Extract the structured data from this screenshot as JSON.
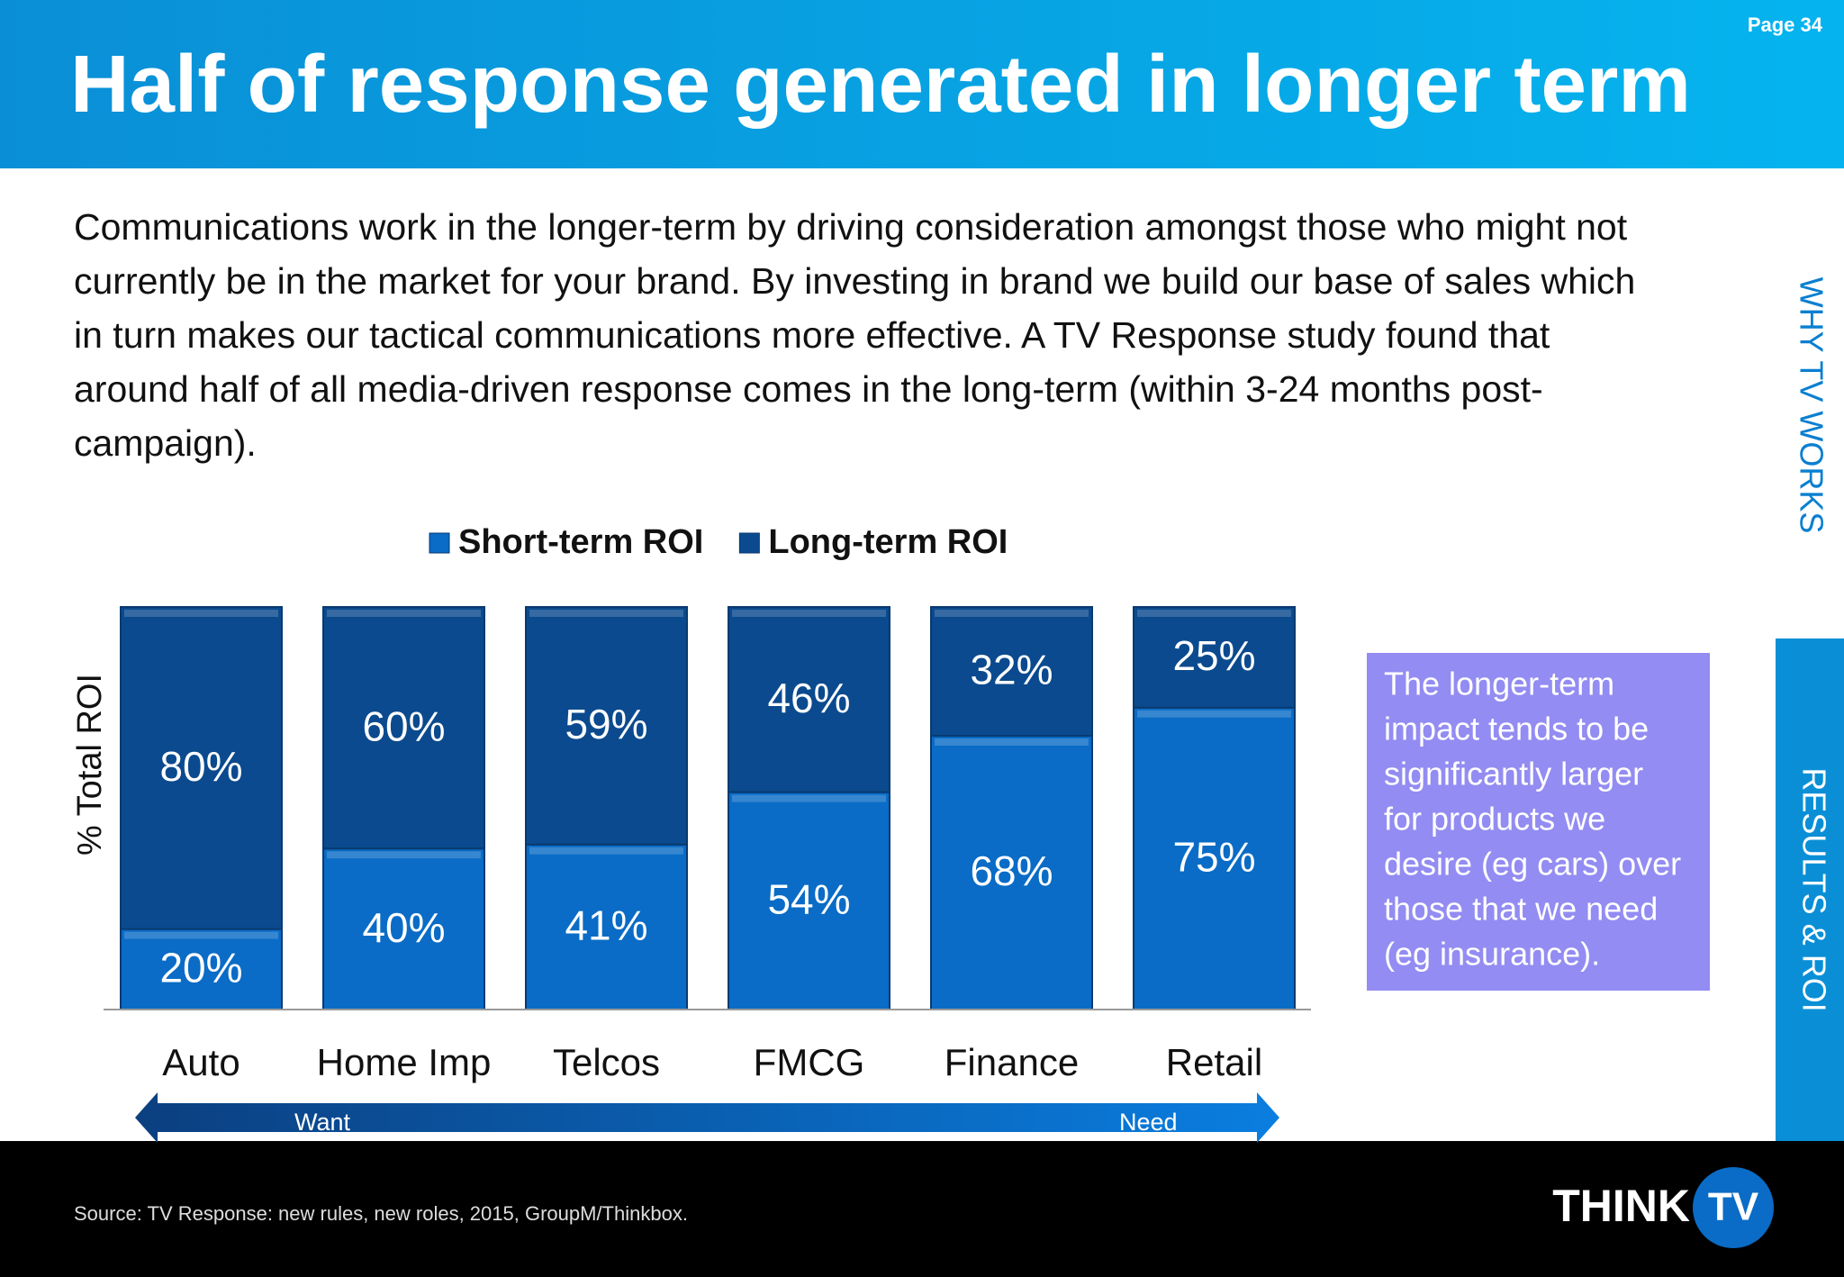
{
  "header": {
    "title": "Half of response generated in longer term",
    "page": "Page 34"
  },
  "paragraph": [
    "Communications work in the longer-term by driving consideration amongst those who might not",
    "currently be in the market for your brand.  By investing in brand we build our base of sales which",
    "in turn makes our tactical communications more effective.  A TV Response study found that",
    "around half of all media-driven response comes in the long-term (within 3-24 months post-",
    "campaign)."
  ],
  "chart_data": {
    "type": "stacked_bar",
    "y_label": "% Total ROI",
    "categories": [
      "Auto",
      "Home Imp",
      "Telcos",
      "FMCG",
      "Finance",
      "Retail"
    ],
    "series": [
      {
        "name": "Short-term ROI",
        "color": "#0a6cc6",
        "values": [
          20,
          40,
          41,
          54,
          68,
          75
        ],
        "value_labels": [
          "20%",
          "40%",
          "41%",
          "54%",
          "68%",
          "75%"
        ]
      },
      {
        "name": "Long-term ROI",
        "color": "#0b4a8e",
        "values": [
          80,
          60,
          59,
          46,
          32,
          25
        ],
        "value_labels": [
          "80%",
          "60%",
          "59%",
          "46%",
          "32%",
          "25%"
        ]
      }
    ],
    "ylim": [
      0,
      100
    ],
    "arrow_labels": [
      "Want",
      "Need"
    ]
  },
  "callout": [
    "The longer-term",
    "impact tends to be",
    "significantly larger",
    "for products we",
    "desire (eg cars) over",
    "those that we need",
    "(eg insurance)."
  ],
  "side_tabs": [
    "WHY TV WORKS",
    "RESULTS & ROI"
  ],
  "footer": {
    "source": "Source: TV Response: new rules, new roles, 2015, GroupM/Thinkbox.",
    "logo": [
      "THINK",
      "TV"
    ]
  }
}
